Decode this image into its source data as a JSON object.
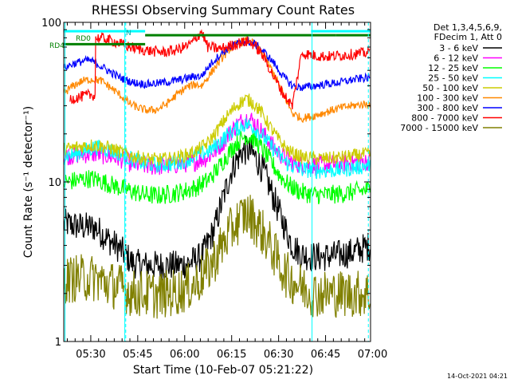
{
  "chart_data": {
    "type": "line",
    "title": "RHESSI Observing Summary Count Rates",
    "xlabel": "Start Time (10-Feb-07 05:21:22)",
    "ylabel": "Count Rate (s⁻¹ detector⁻¹)",
    "yscale": "log",
    "ylim": [
      1,
      100
    ],
    "xlim_minutes": [
      0,
      98
    ],
    "x_ticks": [
      "05:30",
      "05:45",
      "06:00",
      "06:15",
      "06:30",
      "06:45",
      "07:00"
    ],
    "y_ticks": [
      "1",
      "10",
      "100"
    ],
    "grid": false,
    "legend_position": "top-right",
    "legend_header": [
      "Det 1,3,4,5,6,9,",
      "FDecim 1, Att 0"
    ],
    "footer_date": "14-Oct-2021 04:21",
    "annotations": [
      "RD0",
      "RD4",
      "N"
    ],
    "series": [
      {
        "name": "3 - 6 keV",
        "color": "#000000",
        "points": [
          [
            0,
            5.5
          ],
          [
            4,
            5.3
          ],
          [
            8,
            5.2
          ],
          [
            10,
            5.2
          ],
          [
            14,
            4.4
          ],
          [
            18,
            3.8
          ],
          [
            22,
            3.1
          ],
          [
            26,
            3.0
          ],
          [
            32,
            3.0
          ],
          [
            36,
            3.0
          ],
          [
            40,
            3.1
          ],
          [
            44,
            3.4
          ],
          [
            48,
            5.0
          ],
          [
            51,
            8.0
          ],
          [
            54,
            12.5
          ],
          [
            57,
            15.5
          ],
          [
            59,
            15.8
          ],
          [
            61,
            14.5
          ],
          [
            64,
            11.5
          ],
          [
            67,
            8.0
          ],
          [
            70,
            5.6
          ],
          [
            73,
            4.0
          ],
          [
            76,
            3.5
          ],
          [
            80,
            3.4
          ],
          [
            84,
            3.4
          ],
          [
            88,
            3.5
          ],
          [
            92,
            3.6
          ],
          [
            95,
            3.8
          ],
          [
            98,
            4.0
          ]
        ]
      },
      {
        "name": "6 - 12 keV",
        "color": "#ff00ff",
        "points": [
          [
            0,
            14.5
          ],
          [
            4,
            14.8
          ],
          [
            8,
            15.0
          ],
          [
            10,
            15.0
          ],
          [
            14,
            14.6
          ],
          [
            18,
            14.0
          ],
          [
            22,
            13.0
          ],
          [
            26,
            12.6
          ],
          [
            30,
            12.5
          ],
          [
            34,
            12.7
          ],
          [
            38,
            13.0
          ],
          [
            42,
            13.4
          ],
          [
            46,
            14.3
          ],
          [
            49,
            16.0
          ],
          [
            52,
            19.0
          ],
          [
            55,
            22.5
          ],
          [
            58,
            25.0
          ],
          [
            60,
            24.5
          ],
          [
            63,
            21.0
          ],
          [
            66,
            17.5
          ],
          [
            69,
            15.0
          ],
          [
            72,
            13.5
          ],
          [
            76,
            12.8
          ],
          [
            80,
            12.7
          ],
          [
            84,
            12.8
          ],
          [
            88,
            13.0
          ],
          [
            92,
            13.2
          ],
          [
            95,
            13.4
          ],
          [
            98,
            13.5
          ]
        ]
      },
      {
        "name": "12 - 25 keV",
        "color": "#00ff00",
        "points": [
          [
            0,
            10.0
          ],
          [
            4,
            10.2
          ],
          [
            8,
            10.5
          ],
          [
            10,
            10.4
          ],
          [
            14,
            9.8
          ],
          [
            18,
            9.2
          ],
          [
            22,
            8.7
          ],
          [
            26,
            8.3
          ],
          [
            30,
            8.2
          ],
          [
            34,
            8.4
          ],
          [
            38,
            8.7
          ],
          [
            42,
            9.2
          ],
          [
            46,
            10.2
          ],
          [
            49,
            12.0
          ],
          [
            52,
            14.5
          ],
          [
            55,
            17.5
          ],
          [
            58,
            19.5
          ],
          [
            60,
            19.0
          ],
          [
            63,
            16.5
          ],
          [
            66,
            13.5
          ],
          [
            69,
            11.0
          ],
          [
            72,
            9.5
          ],
          [
            76,
            8.6
          ],
          [
            80,
            8.3
          ],
          [
            84,
            8.3
          ],
          [
            88,
            8.4
          ],
          [
            92,
            8.6
          ],
          [
            95,
            8.8
          ],
          [
            98,
            9.0
          ]
        ]
      },
      {
        "name": "25 - 50 keV",
        "color": "#00ffff",
        "points": [
          [
            0,
            14.5
          ],
          [
            4,
            15.0
          ],
          [
            8,
            16.0
          ],
          [
            10,
            16.5
          ],
          [
            14,
            16.0
          ],
          [
            18,
            15.0
          ],
          [
            22,
            13.8
          ],
          [
            26,
            13.0
          ],
          [
            30,
            12.8
          ],
          [
            34,
            13.0
          ],
          [
            38,
            13.5
          ],
          [
            42,
            14.5
          ],
          [
            46,
            15.5
          ],
          [
            49,
            17.0
          ],
          [
            52,
            19.5
          ],
          [
            55,
            21.5
          ],
          [
            58,
            23.0
          ],
          [
            60,
            22.5
          ],
          [
            63,
            20.0
          ],
          [
            66,
            17.0
          ],
          [
            69,
            14.5
          ],
          [
            72,
            12.8
          ],
          [
            76,
            12.0
          ],
          [
            80,
            11.8
          ],
          [
            84,
            11.8
          ],
          [
            88,
            11.9
          ],
          [
            92,
            12.2
          ],
          [
            95,
            12.5
          ],
          [
            98,
            12.8
          ]
        ]
      },
      {
        "name": "50 - 100 keV",
        "color": "#cccc00",
        "points": [
          [
            0,
            16.0
          ],
          [
            4,
            16.5
          ],
          [
            8,
            17.0
          ],
          [
            10,
            17.0
          ],
          [
            14,
            16.5
          ],
          [
            18,
            15.5
          ],
          [
            22,
            14.5
          ],
          [
            26,
            14.0
          ],
          [
            30,
            13.8
          ],
          [
            34,
            14.0
          ],
          [
            38,
            14.5
          ],
          [
            42,
            15.5
          ],
          [
            46,
            17.5
          ],
          [
            49,
            21.0
          ],
          [
            52,
            25.5
          ],
          [
            55,
            30.0
          ],
          [
            58,
            33.0
          ],
          [
            60,
            32.0
          ],
          [
            63,
            27.5
          ],
          [
            66,
            22.0
          ],
          [
            69,
            18.0
          ],
          [
            72,
            15.5
          ],
          [
            76,
            14.3
          ],
          [
            80,
            14.0
          ],
          [
            84,
            14.0
          ],
          [
            88,
            14.2
          ],
          [
            92,
            14.5
          ],
          [
            95,
            14.8
          ],
          [
            98,
            15.0
          ]
        ]
      },
      {
        "name": "100 - 300 keV",
        "color": "#ff8800",
        "points": [
          [
            0,
            36.0
          ],
          [
            3,
            40.0
          ],
          [
            6,
            43.0
          ],
          [
            9,
            44.0
          ],
          [
            12,
            43.0
          ],
          [
            15,
            39.0
          ],
          [
            18,
            35.0
          ],
          [
            21,
            31.0
          ],
          [
            24,
            29.0
          ],
          [
            27,
            28.0
          ],
          [
            30,
            28.5
          ],
          [
            33,
            31.0
          ],
          [
            36,
            35.0
          ],
          [
            39,
            39.0
          ],
          [
            42,
            41.0
          ],
          [
            44,
            40.0
          ],
          [
            47,
            48.0
          ],
          [
            50,
            58.0
          ],
          [
            53,
            68.0
          ],
          [
            56,
            75.0
          ],
          [
            59,
            77.0
          ],
          [
            61,
            73.0
          ],
          [
            64,
            62.0
          ],
          [
            67,
            48.0
          ],
          [
            70,
            36.0
          ],
          [
            73,
            27.0
          ],
          [
            76,
            25.0
          ],
          [
            80,
            26.0
          ],
          [
            84,
            27.5
          ],
          [
            88,
            29.0
          ],
          [
            92,
            30.0
          ],
          [
            95,
            30.5
          ],
          [
            98,
            31.0
          ]
        ]
      },
      {
        "name": "300 - 800 keV",
        "color": "#0000ff",
        "points": [
          [
            0,
            52.0
          ],
          [
            3,
            55.0
          ],
          [
            6,
            57.0
          ],
          [
            8,
            58.0
          ],
          [
            10,
            56.0
          ],
          [
            14,
            50.0
          ],
          [
            18,
            45.0
          ],
          [
            22,
            42.0
          ],
          [
            26,
            41.0
          ],
          [
            30,
            41.5
          ],
          [
            34,
            42.5
          ],
          [
            38,
            44.0
          ],
          [
            42,
            46.0
          ],
          [
            44,
            46.0
          ],
          [
            47,
            55.0
          ],
          [
            50,
            63.0
          ],
          [
            53,
            70.0
          ],
          [
            56,
            74.0
          ],
          [
            59,
            76.0
          ],
          [
            61,
            73.0
          ],
          [
            64,
            65.0
          ],
          [
            67,
            56.0
          ],
          [
            70,
            46.0
          ],
          [
            73,
            40.0
          ],
          [
            76,
            39.0
          ],
          [
            80,
            40.0
          ],
          [
            84,
            41.0
          ],
          [
            88,
            42.0
          ],
          [
            92,
            43.5
          ],
          [
            95,
            44.5
          ],
          [
            98,
            45.0
          ]
        ]
      },
      {
        "name": "800 - 7000 keV",
        "color": "#ff0000",
        "points": [
          [
            2,
            33.0
          ],
          [
            5,
            34.0
          ],
          [
            8,
            35.0
          ],
          [
            10,
            35.0
          ],
          [
            10.2,
            80.0
          ],
          [
            13,
            79.0
          ],
          [
            16,
            76.0
          ],
          [
            20,
            71.0
          ],
          [
            24,
            68.0
          ],
          [
            28,
            66.0
          ],
          [
            32,
            65.0
          ],
          [
            36,
            67.0
          ],
          [
            40,
            72.0
          ],
          [
            42,
            78.0
          ],
          [
            44,
            88.0
          ],
          [
            46,
            70.0
          ],
          [
            50,
            68.0
          ],
          [
            53,
            71.0
          ],
          [
            56,
            74.0
          ],
          [
            59,
            76.0
          ],
          [
            61,
            72.0
          ],
          [
            64,
            60.0
          ],
          [
            67,
            46.0
          ],
          [
            70,
            36.0
          ],
          [
            73,
            30.0
          ],
          [
            76,
            64.0
          ],
          [
            80,
            62.0
          ],
          [
            84,
            61.0
          ],
          [
            88,
            62.0
          ],
          [
            92,
            63.0
          ],
          [
            95,
            64.0
          ],
          [
            98,
            65.0
          ]
        ]
      },
      {
        "name": "7000 - 15000 keV",
        "color": "#808000",
        "points": [
          [
            0,
            2.4
          ],
          [
            4,
            2.5
          ],
          [
            8,
            2.5
          ],
          [
            10,
            2.5
          ],
          [
            14,
            2.3
          ],
          [
            18,
            2.2
          ],
          [
            22,
            2.0
          ],
          [
            26,
            2.0
          ],
          [
            30,
            1.95
          ],
          [
            34,
            2.0
          ],
          [
            38,
            2.1
          ],
          [
            42,
            2.3
          ],
          [
            46,
            2.8
          ],
          [
            49,
            3.5
          ],
          [
            52,
            4.5
          ],
          [
            55,
            5.5
          ],
          [
            58,
            6.3
          ],
          [
            60,
            6.0
          ],
          [
            63,
            5.0
          ],
          [
            66,
            4.0
          ],
          [
            69,
            3.0
          ],
          [
            72,
            2.5
          ],
          [
            76,
            2.2
          ],
          [
            80,
            2.0
          ],
          [
            84,
            2.0
          ],
          [
            88,
            2.0
          ],
          [
            92,
            2.0
          ],
          [
            95,
            2.0
          ],
          [
            98,
            2.0
          ]
        ]
      }
    ]
  }
}
